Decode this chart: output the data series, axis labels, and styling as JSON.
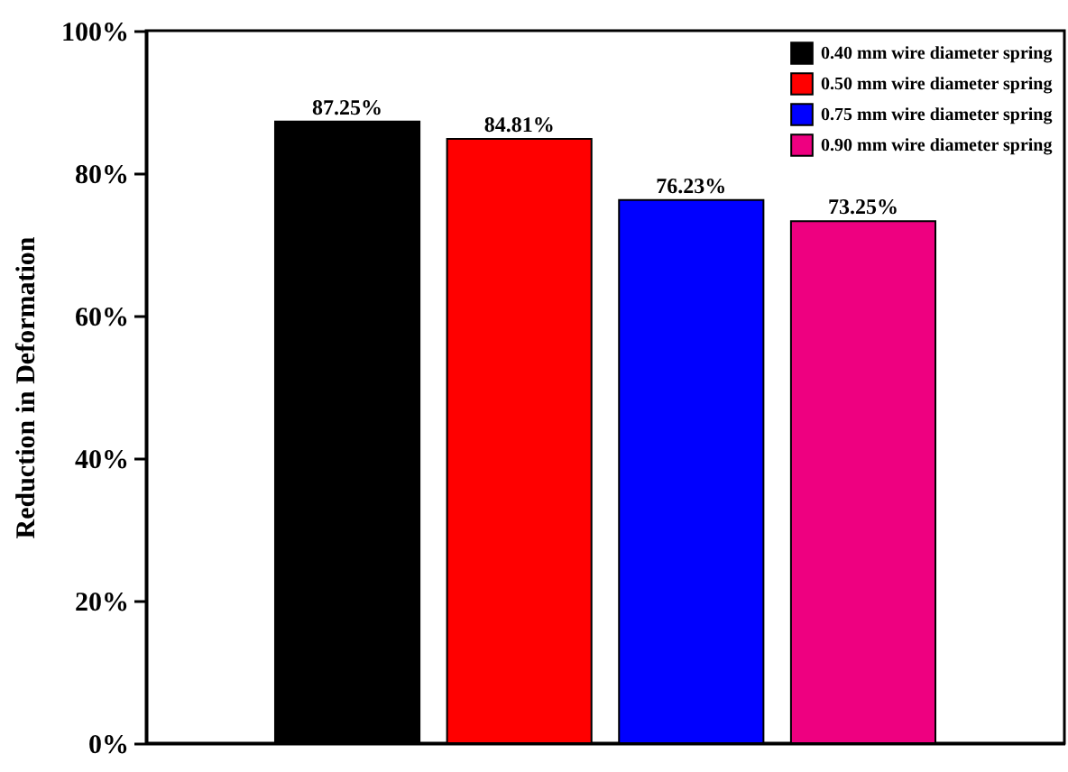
{
  "chart_data": {
    "type": "bar",
    "ylabel": "Reduction in Deformation",
    "categories": [
      null,
      null,
      null,
      null
    ],
    "series": [
      {
        "name": "0.40 mm wire diameter spring",
        "color": "#000000",
        "values": [
          87.25,
          null,
          null,
          null
        ],
        "value_labels": [
          "87.25%",
          null,
          null,
          null
        ]
      },
      {
        "name": "0.50 mm wire diameter spring",
        "color": "#ff0000",
        "values": [
          null,
          84.81,
          null,
          null
        ],
        "value_labels": [
          null,
          "84.81%",
          null,
          null
        ]
      },
      {
        "name": "0.75 mm wire diameter spring",
        "color": "#0000ff",
        "values": [
          null,
          null,
          76.23,
          null
        ],
        "value_labels": [
          null,
          null,
          "76.23%",
          null
        ]
      },
      {
        "name": "0.90 mm wire diameter spring",
        "color": "#ee0080",
        "values": [
          null,
          null,
          null,
          73.25
        ],
        "value_labels": [
          null,
          null,
          null,
          "73.25%"
        ]
      }
    ],
    "ylim": [
      0,
      100
    ],
    "yticks": [
      {
        "value": 0,
        "label": "0%"
      },
      {
        "value": 20,
        "label": "20%"
      },
      {
        "value": 40,
        "label": "40%"
      },
      {
        "value": 60,
        "label": "60%"
      },
      {
        "value": 80,
        "label": "80%"
      },
      {
        "value": 100,
        "label": "100%"
      }
    ],
    "legend": "top right",
    "tick_labels": "y"
  }
}
